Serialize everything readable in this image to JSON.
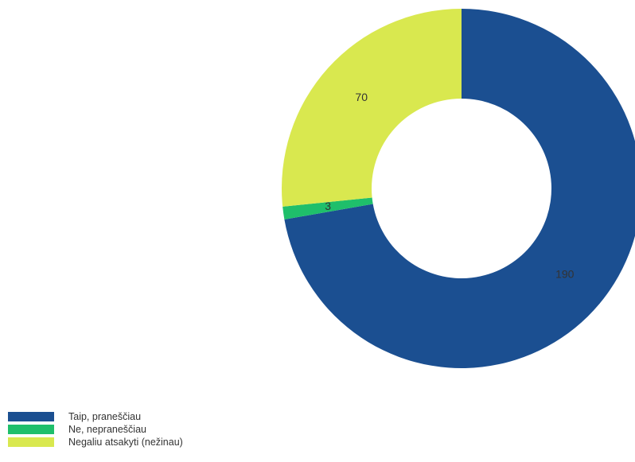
{
  "chart_data": {
    "type": "pie",
    "donut": true,
    "categories": [
      "Taip, praneščiau",
      "Ne, nepraneščiau",
      "Negaliu atsakyti (nežinau)"
    ],
    "values": [
      190,
      3,
      70
    ],
    "data_labels": [
      "190",
      "3",
      "70"
    ],
    "colors": [
      "#1b4f91",
      "#1fbf6b",
      "#d9e84f"
    ],
    "legend_position": "bottom-left",
    "title": ""
  }
}
